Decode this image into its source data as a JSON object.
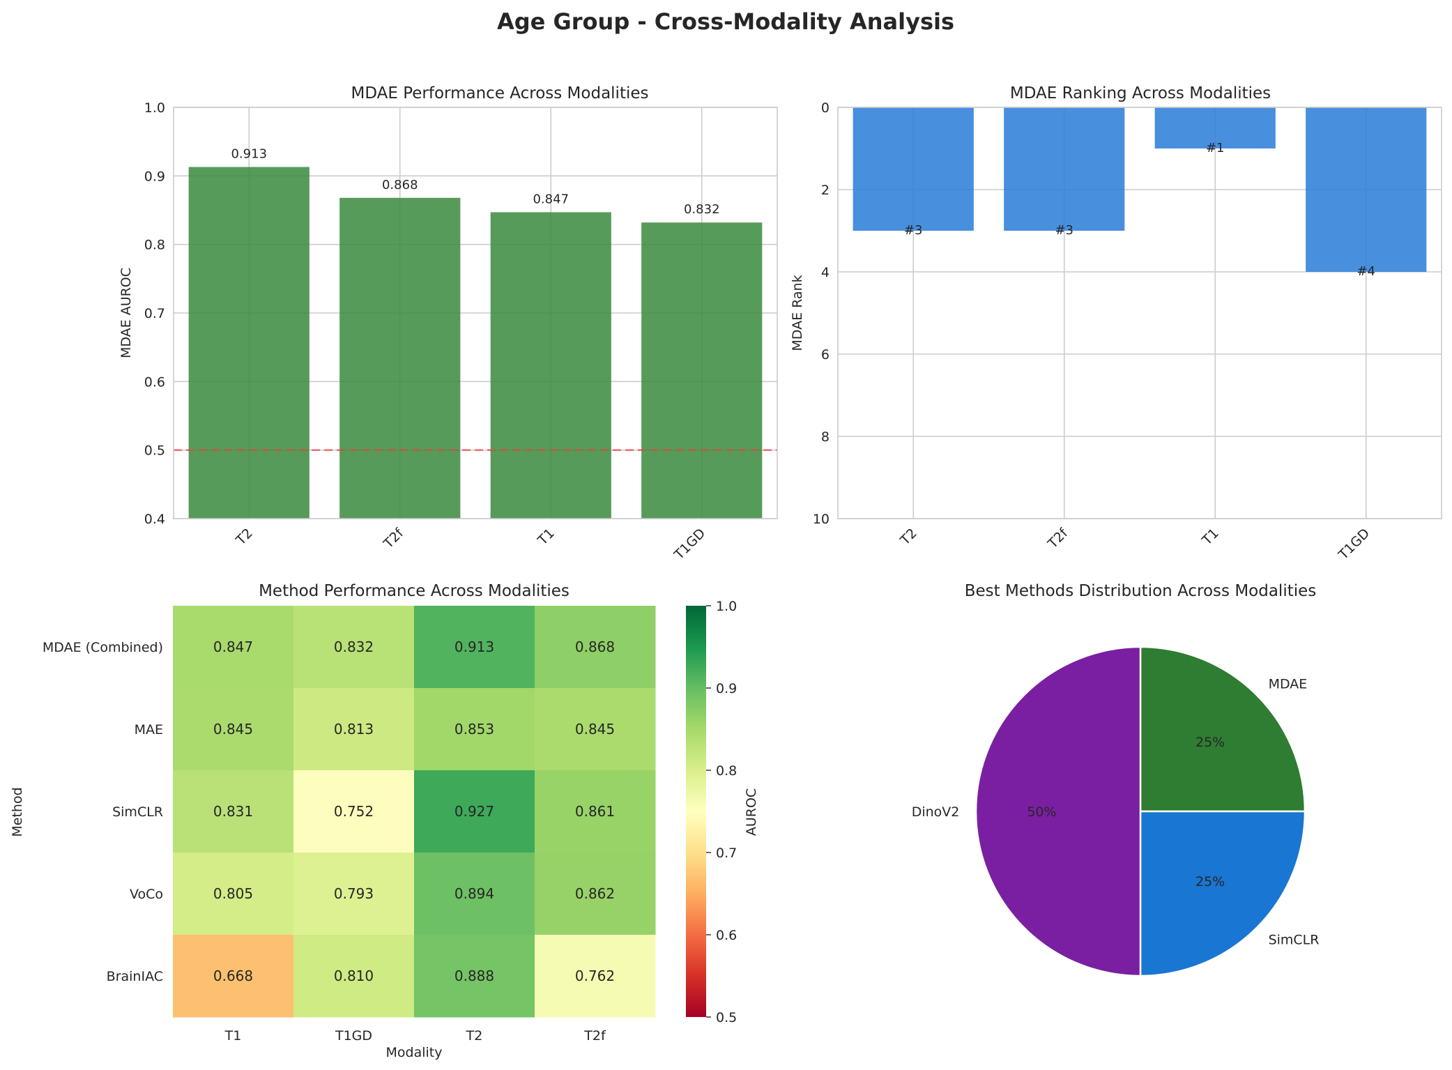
{
  "figure": {
    "title": "Age Group - Cross-Modality Analysis"
  },
  "chart_data": [
    {
      "type": "bar",
      "title": "MDAE Performance Across Modalities",
      "xlabel": "",
      "ylabel": "MDAE AUROC",
      "categories": [
        "T2",
        "T2f",
        "T1",
        "T1GD"
      ],
      "values": [
        0.913,
        0.868,
        0.847,
        0.832
      ],
      "data_labels": [
        "0.913",
        "0.868",
        "0.847",
        "0.832"
      ],
      "ylim": [
        0.4,
        1.0
      ],
      "yticks": [
        "0.4",
        "0.5",
        "0.6",
        "0.7",
        "0.8",
        "0.9",
        "1.0"
      ],
      "reference_line": 0.5,
      "bar_color": "#3a8a3e",
      "reference_color": "#e8413b",
      "grid": true
    },
    {
      "type": "bar",
      "title": "MDAE Ranking Across Modalities",
      "xlabel": "",
      "ylabel": "MDAE Rank",
      "categories": [
        "T2",
        "T2f",
        "T1",
        "T1GD"
      ],
      "values": [
        3,
        3,
        1,
        4
      ],
      "data_labels": [
        "#3",
        "#3",
        "#1",
        "#4"
      ],
      "ylim": [
        10,
        0
      ],
      "inverted_y": true,
      "yticks": [
        "0",
        "2",
        "4",
        "6",
        "8",
        "10"
      ],
      "bar_color": "#2f80d9",
      "grid": true
    },
    {
      "type": "heatmap",
      "title": "Method Performance Across Modalities",
      "xlabel": "Modality",
      "ylabel": "Method",
      "x": [
        "T1",
        "T1GD",
        "T2",
        "T2f"
      ],
      "y": [
        "MDAE (Combined)",
        "MAE",
        "SimCLR",
        "VoCo",
        "BrainIAC"
      ],
      "values": [
        [
          0.847,
          0.832,
          0.913,
          0.868
        ],
        [
          0.845,
          0.813,
          0.853,
          0.845
        ],
        [
          0.831,
          0.752,
          0.927,
          0.861
        ],
        [
          0.805,
          0.793,
          0.894,
          0.862
        ],
        [
          0.668,
          0.81,
          0.888,
          0.762
        ]
      ],
      "cell_labels": [
        [
          "0.847",
          "0.832",
          "0.913",
          "0.868"
        ],
        [
          "0.845",
          "0.813",
          "0.853",
          "0.845"
        ],
        [
          "0.831",
          "0.752",
          "0.927",
          "0.861"
        ],
        [
          "0.805",
          "0.793",
          "0.894",
          "0.862"
        ],
        [
          "0.668",
          "0.810",
          "0.888",
          "0.762"
        ]
      ],
      "colorbar": {
        "label": "AUROC",
        "range": [
          0.5,
          1.0
        ],
        "ticks": [
          "0.5",
          "0.6",
          "0.7",
          "0.8",
          "0.9",
          "1.0"
        ],
        "colormap": "RdYlGn"
      }
    },
    {
      "type": "pie",
      "title": "Best Methods Distribution Across Modalities",
      "labels": [
        "MDAE",
        "SimCLR",
        "DinoV2"
      ],
      "values": [
        25,
        25,
        50
      ],
      "pct_labels": [
        "25%",
        "25%",
        "50%"
      ],
      "colors": [
        "#2e7d32",
        "#1976d2",
        "#7b1fa2"
      ]
    }
  ]
}
